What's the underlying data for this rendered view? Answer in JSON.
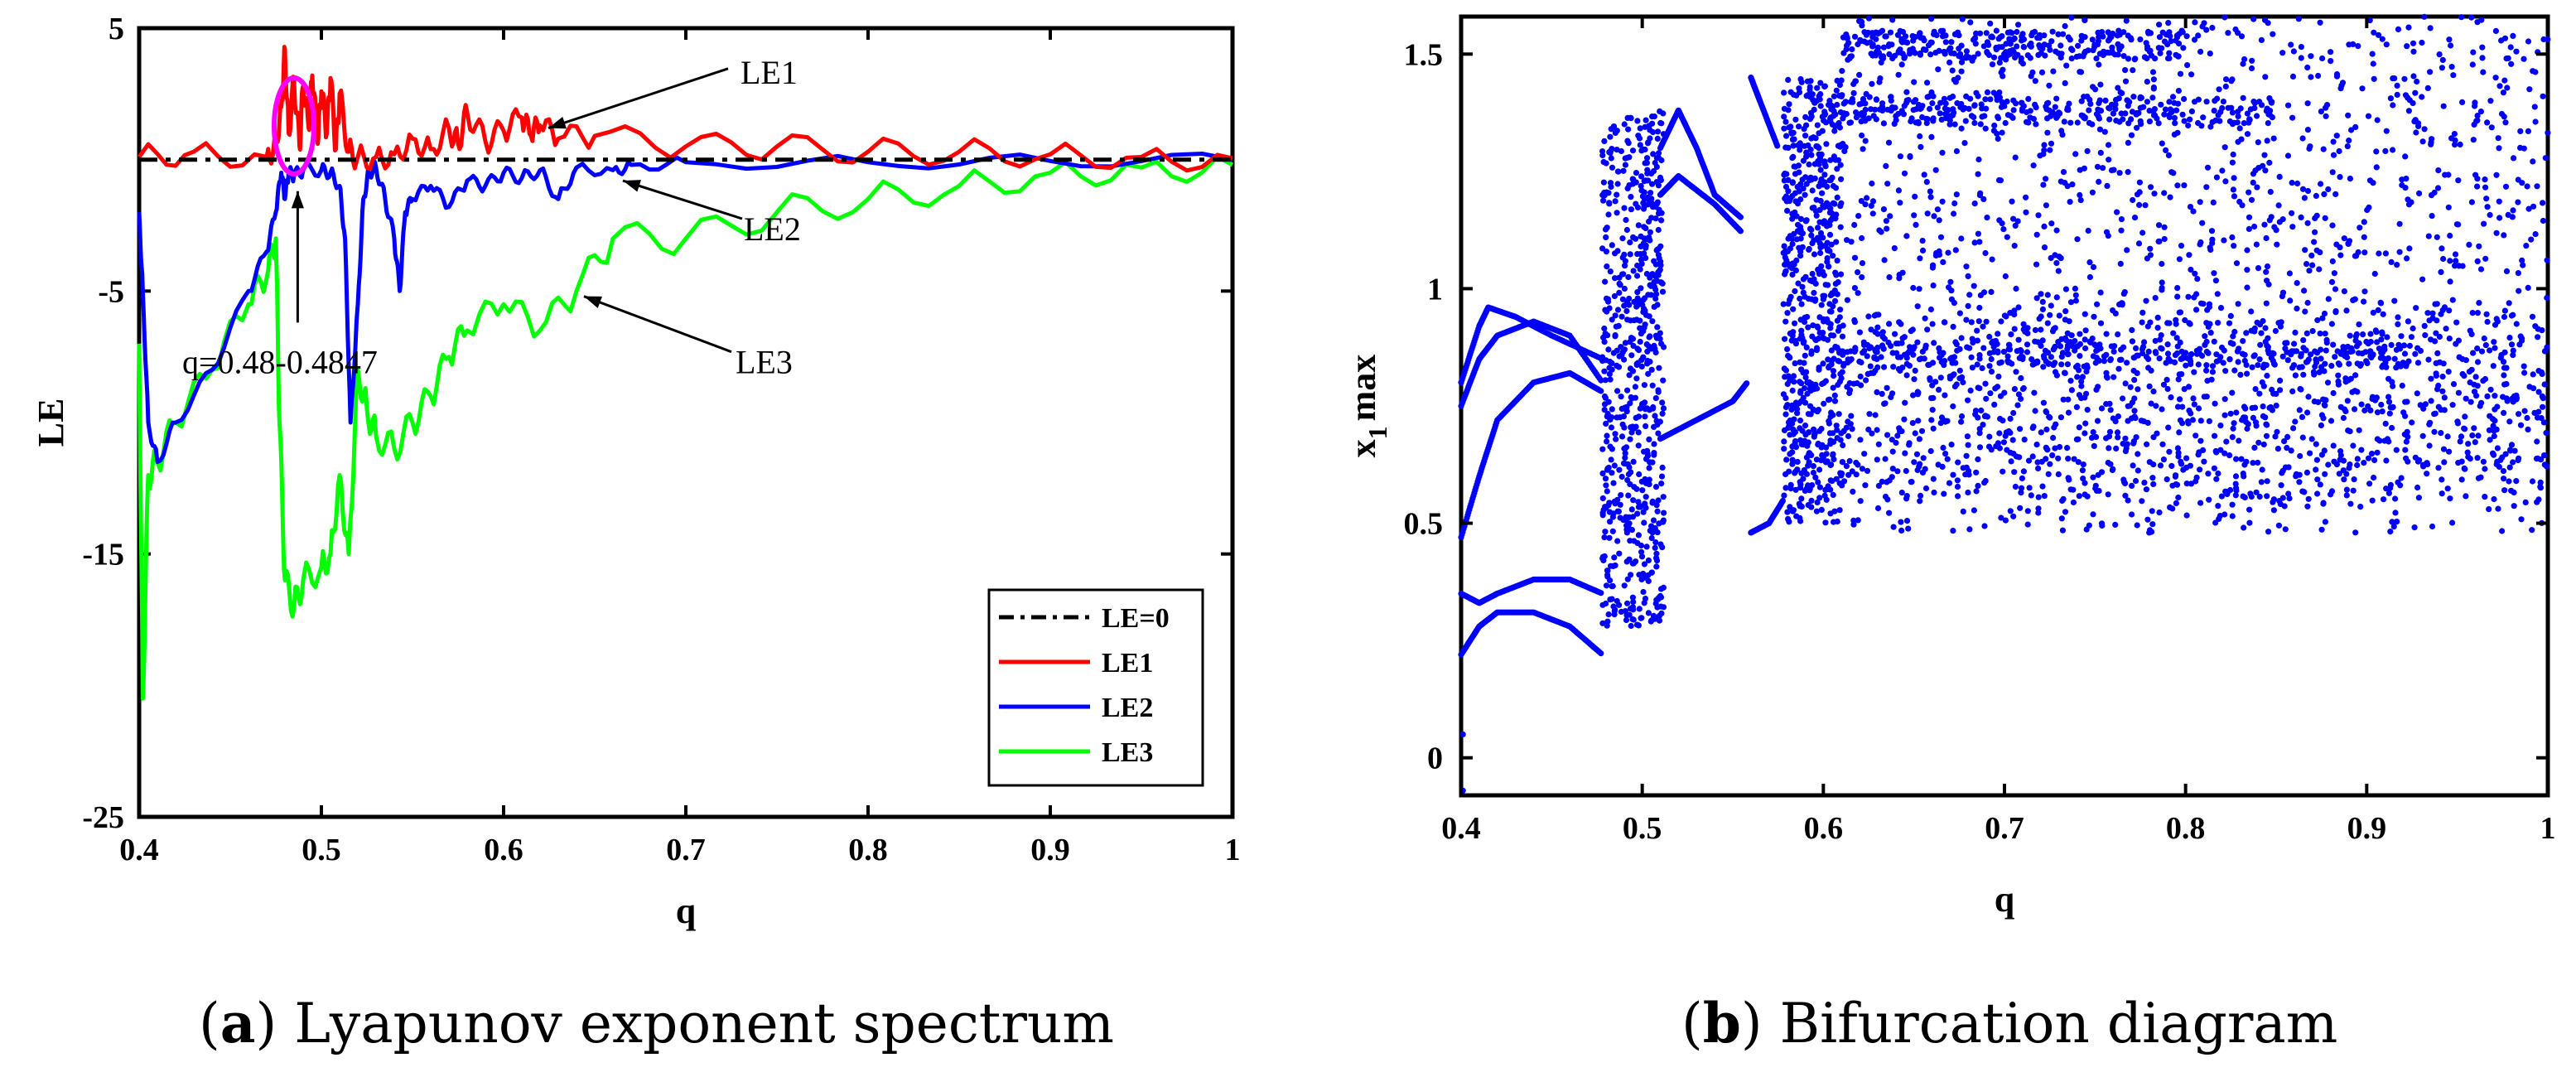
{
  "chart_data": [
    {
      "id": "a",
      "type": "line",
      "caption_letter": "a",
      "caption_text": "Lyapunov exponent spectrum",
      "xlabel": "q",
      "ylabel": "LE",
      "xlim": [
        0.4,
        1.0
      ],
      "ylim": [
        -25,
        5
      ],
      "xticks": [
        "0.4",
        "0.5",
        "0.6",
        "0.7",
        "0.8",
        "0.9",
        "1"
      ],
      "yticks": [
        "5",
        "-5",
        "-15",
        "-25"
      ],
      "ytick_values": [
        5,
        -5,
        -15,
        -25
      ],
      "legend_position": "bottom-right",
      "series": [
        {
          "name": "LE=0",
          "color": "#000000",
          "dash": true,
          "x": [
            0.4,
            1.0
          ],
          "y": [
            0,
            0
          ]
        },
        {
          "name": "LE1",
          "color": "#ff0000",
          "x": [
            0.4,
            0.43,
            0.47,
            0.475,
            0.478,
            0.48,
            0.482,
            0.485,
            0.488,
            0.49,
            0.493,
            0.495,
            0.498,
            0.5,
            0.503,
            0.505,
            0.508,
            0.51,
            0.515,
            0.52,
            0.53,
            0.54,
            0.55,
            0.56,
            0.57,
            0.575,
            0.58,
            0.59,
            0.6,
            0.61,
            0.615,
            0.62,
            0.63,
            0.65,
            0.7,
            0.75,
            0.8,
            0.85,
            0.9,
            0.95,
            1.0
          ],
          "y": [
            0.1,
            0.3,
            0.1,
            0.6,
            2.0,
            4.2,
            1.0,
            3.0,
            0.5,
            2.8,
            1.2,
            3.2,
            0.6,
            2.6,
            1.0,
            3.1,
            0.4,
            2.5,
            0.3,
            0.1,
            0.1,
            0.2,
            0.8,
            0.4,
            1.2,
            0.6,
            1.8,
            0.7,
            1.1,
            1.6,
            0.9,
            1.3,
            0.8,
            0.9,
            0.5,
            0.5,
            0.3,
            0.3,
            0.2,
            0.1,
            0.05
          ]
        },
        {
          "name": "LE2",
          "color": "#0000ff",
          "x": [
            0.4,
            0.402,
            0.405,
            0.41,
            0.42,
            0.44,
            0.46,
            0.47,
            0.475,
            0.478,
            0.48,
            0.482,
            0.485,
            0.49,
            0.5,
            0.505,
            0.51,
            0.513,
            0.516,
            0.52,
            0.523,
            0.526,
            0.53,
            0.535,
            0.54,
            0.543,
            0.546,
            0.55,
            0.56,
            0.57,
            0.58,
            0.59,
            0.6,
            0.61,
            0.62,
            0.63,
            0.64,
            0.66,
            0.67,
            0.7,
            0.8,
            0.9,
            1.0
          ],
          "y": [
            -2,
            -5,
            -10,
            -11.5,
            -10,
            -8,
            -5,
            -3.5,
            -2,
            -0.5,
            -1.5,
            -0.5,
            -0.6,
            -0.4,
            -0.4,
            -0.5,
            -1,
            -3,
            -10,
            -5.5,
            -1.5,
            -0.5,
            -0.3,
            -1.5,
            -3,
            -5,
            -2,
            -1.5,
            -1,
            -1.8,
            -0.8,
            -1,
            -0.5,
            -0.7,
            -0.4,
            -1.5,
            -0.3,
            -0.4,
            -0.2,
            -0.1,
            -0.1,
            -0.05,
            0
          ]
        },
        {
          "name": "LE3",
          "color": "#00ff00",
          "x": [
            0.4,
            0.402,
            0.405,
            0.41,
            0.42,
            0.44,
            0.46,
            0.47,
            0.475,
            0.477,
            0.48,
            0.485,
            0.49,
            0.5,
            0.505,
            0.51,
            0.515,
            0.52,
            0.525,
            0.53,
            0.54,
            0.55,
            0.56,
            0.57,
            0.58,
            0.6,
            0.62,
            0.64,
            0.66,
            0.7,
            0.75,
            0.8,
            0.85,
            0.9,
            0.95,
            1.0
          ],
          "y": [
            -7,
            -20.5,
            -12,
            -11.5,
            -10,
            -8,
            -5.5,
            -4.5,
            -3,
            -10,
            -16,
            -17,
            -16,
            -15.5,
            -15,
            -12,
            -15,
            -8,
            -9.5,
            -10.5,
            -11,
            -10,
            -9,
            -7.5,
            -6.5,
            -5.5,
            -6.5,
            -5,
            -3,
            -3,
            -2,
            -1.5,
            -1,
            -0.5,
            -0.3,
            -0.2
          ]
        }
      ],
      "annotations": [
        {
          "text": "LE1",
          "x": 0.63,
          "y": 2.2
        },
        {
          "text": "LE2",
          "x": 0.7,
          "y": -2.5
        },
        {
          "text": "LE3",
          "x": 0.65,
          "y": -7.5
        },
        {
          "text": "q=0.48-0.4847",
          "x": 0.49,
          "y": -7.5
        }
      ]
    },
    {
      "id": "b",
      "type": "scatter",
      "caption_letter": "b",
      "caption_text": "Bifurcation diagram",
      "xlabel": "q",
      "ylabel": "x",
      "ylabel_subscript": "1",
      "ylabel_suffix": "max",
      "xlim": [
        0.4,
        1.0
      ],
      "ylim": [
        -0.08,
        1.58
      ],
      "xticks": [
        "0.4",
        "0.5",
        "0.6",
        "0.7",
        "0.8",
        "0.9",
        "1"
      ],
      "yticks": [
        "0",
        "0.5",
        "1",
        "1.5"
      ],
      "ytick_values": [
        0,
        0.5,
        1,
        1.5
      ],
      "color": "#0000ff",
      "branches": [
        {
          "x": [
            0.4,
            0.41,
            0.42,
            0.44,
            0.46,
            0.478
          ],
          "y": [
            0.22,
            0.28,
            0.31,
            0.31,
            0.28,
            0.22
          ]
        },
        {
          "x": [
            0.4,
            0.41,
            0.42,
            0.44,
            0.46,
            0.478
          ],
          "y": [
            0.35,
            0.33,
            0.35,
            0.38,
            0.38,
            0.35
          ]
        },
        {
          "x": [
            0.4,
            0.41,
            0.42,
            0.44,
            0.46,
            0.478
          ],
          "y": [
            0.47,
            0.6,
            0.72,
            0.8,
            0.82,
            0.78
          ]
        },
        {
          "x": [
            0.4,
            0.41,
            0.42,
            0.44,
            0.46,
            0.478
          ],
          "y": [
            0.75,
            0.85,
            0.9,
            0.93,
            0.9,
            0.8
          ]
        },
        {
          "x": [
            0.4,
            0.41,
            0.415,
            0.43,
            0.45,
            0.478
          ],
          "y": [
            0.8,
            0.92,
            0.96,
            0.94,
            0.9,
            0.85
          ]
        },
        {
          "x": [
            0.51,
            0.52,
            0.53,
            0.54,
            0.555
          ],
          "y": [
            1.3,
            1.38,
            1.3,
            1.2,
            1.15
          ]
        },
        {
          "x": [
            0.51,
            0.52,
            0.54,
            0.555
          ],
          "y": [
            1.2,
            1.24,
            1.18,
            1.12
          ]
        },
        {
          "x": [
            0.51,
            0.53,
            0.55,
            0.558
          ],
          "y": [
            0.68,
            0.72,
            0.76,
            0.8
          ]
        },
        {
          "x": [
            0.56,
            0.565,
            0.575
          ],
          "y": [
            1.45,
            1.4,
            1.3
          ]
        },
        {
          "x": [
            0.56,
            0.57,
            0.578
          ],
          "y": [
            0.48,
            0.5,
            0.55
          ]
        }
      ],
      "chaotic_regions": [
        {
          "x": [
            0.478,
            0.512
          ],
          "y": [
            0.28,
            1.38
          ]
        },
        {
          "x": [
            0.578,
            0.61
          ],
          "y": [
            0.5,
            1.45
          ]
        },
        {
          "x": [
            0.61,
            1.0
          ],
          "y": [
            0.48,
            1.58
          ]
        }
      ],
      "dense_bands": [
        {
          "x": [
            0.61,
            0.93
          ],
          "y": 0.86
        },
        {
          "x": [
            0.61,
            0.85
          ],
          "y": 1.38
        },
        {
          "x": [
            0.61,
            0.8
          ],
          "y": 1.52
        }
      ]
    }
  ]
}
